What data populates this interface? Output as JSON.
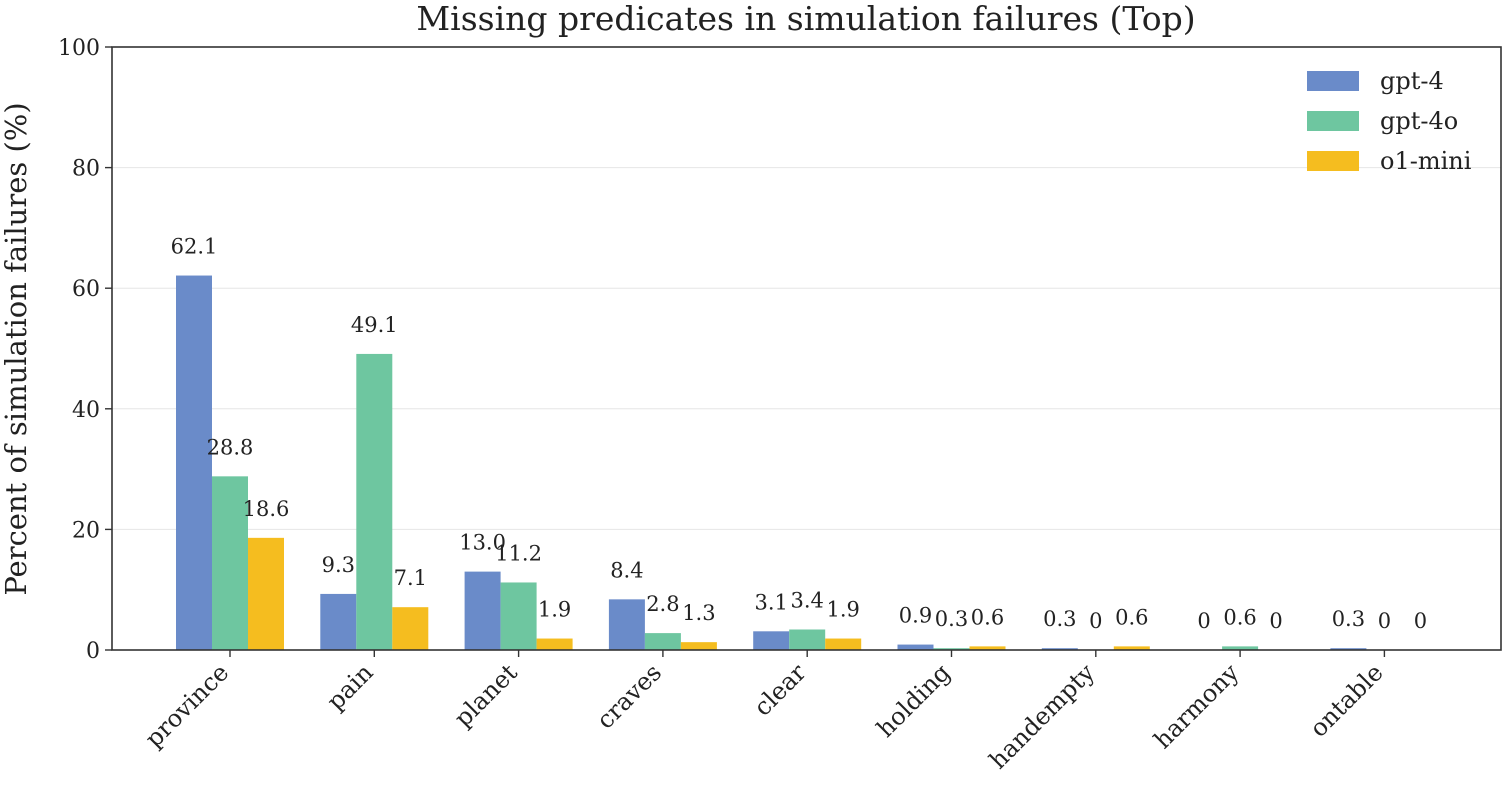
{
  "chart_data": {
    "type": "bar",
    "title": "Missing predicates in simulation failures (Top)",
    "xlabel": "",
    "ylabel": "Percent of simulation failures (%)",
    "ylim": [
      0,
      100
    ],
    "yticks": [
      0,
      20,
      40,
      60,
      80,
      100
    ],
    "grid": "horizontal",
    "legend_position": "top-right",
    "categories": [
      "province",
      "pain",
      "planet",
      "craves",
      "clear",
      "holding",
      "handempty",
      "harmony",
      "ontable"
    ],
    "series": [
      {
        "name": "gpt-4",
        "color": "#6a8bc9",
        "values": [
          62.1,
          9.3,
          13.0,
          8.4,
          3.1,
          0.9,
          0.3,
          0,
          0.3
        ],
        "labels": [
          "62.1",
          "9.3",
          "13.0",
          "8.4",
          "3.1",
          "0.9",
          "0.3",
          "0",
          "0.3"
        ]
      },
      {
        "name": "gpt-4o",
        "color": "#6ec6a0",
        "values": [
          28.8,
          49.1,
          11.2,
          2.8,
          3.4,
          0.3,
          0,
          0.6,
          0
        ],
        "labels": [
          "28.8",
          "49.1",
          "11.2",
          "2.8",
          "3.4",
          "0.3",
          "0",
          "0.6",
          "0"
        ]
      },
      {
        "name": "o1-mini",
        "color": "#f5bd1f",
        "values": [
          18.6,
          7.1,
          1.9,
          1.3,
          1.9,
          0.6,
          0.6,
          0,
          0
        ],
        "labels": [
          "18.6",
          "7.1",
          "1.9",
          "1.3",
          "1.9",
          "0.6",
          "0.6",
          "0",
          "0"
        ]
      }
    ]
  }
}
